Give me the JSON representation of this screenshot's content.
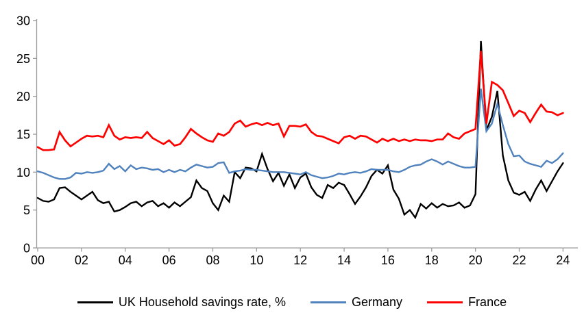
{
  "chart_data": {
    "type": "line",
    "title": "",
    "xlabel": "",
    "ylabel": "",
    "x_unit": "quarterly",
    "x_start": 2000.0,
    "x_step": 0.25,
    "xlim": [
      2000,
      2024.3
    ],
    "ylim": [
      0,
      30
    ],
    "grid": false,
    "legend_position": "bottom",
    "ytick_values": [
      0,
      5,
      10,
      15,
      20,
      25,
      30
    ],
    "xtick_years": [
      2000,
      2002,
      2004,
      2006,
      2008,
      2010,
      2012,
      2014,
      2016,
      2018,
      2020,
      2022,
      2024
    ],
    "xtick_labels": [
      "00",
      "02",
      "04",
      "06",
      "08",
      "10",
      "12",
      "14",
      "16",
      "18",
      "20",
      "22",
      "24"
    ],
    "series": [
      {
        "name": "UK Household savings rate, %",
        "color": "#000000",
        "values": [
          6.6,
          6.2,
          6.1,
          6.4,
          7.9,
          8.0,
          7.4,
          6.9,
          6.4,
          6.9,
          7.4,
          6.3,
          5.9,
          6.1,
          4.8,
          5.0,
          5.4,
          5.9,
          6.1,
          5.5,
          6.0,
          6.2,
          5.5,
          5.9,
          5.3,
          6.0,
          5.5,
          6.1,
          6.7,
          8.9,
          7.9,
          7.5,
          5.9,
          5.0,
          6.9,
          6.1,
          10.0,
          9.2,
          10.6,
          10.5,
          10.1,
          12.4,
          10.4,
          8.8,
          9.9,
          8.2,
          9.7,
          7.9,
          9.3,
          9.8,
          8.0,
          7.0,
          6.6,
          8.3,
          7.9,
          8.6,
          8.3,
          7.1,
          5.8,
          6.8,
          8.0,
          9.5,
          10.3,
          9.8,
          10.9,
          7.7,
          6.5,
          4.4,
          5.0,
          4.0,
          5.8,
          5.2,
          5.9,
          5.3,
          5.8,
          5.5,
          5.6,
          6.0,
          5.3,
          5.6,
          7.1,
          27.3,
          15.5,
          17.3,
          20.7,
          12.2,
          8.9,
          7.3,
          7.0,
          7.4,
          6.2,
          7.7,
          8.9,
          7.5,
          8.8,
          10.1,
          11.2
        ]
      },
      {
        "name": "Germany",
        "color": "#4F81BD",
        "values": [
          10.1,
          9.9,
          9.6,
          9.3,
          9.1,
          9.1,
          9.3,
          9.9,
          9.8,
          10.0,
          9.9,
          10.0,
          10.2,
          11.1,
          10.4,
          10.8,
          10.1,
          10.9,
          10.4,
          10.6,
          10.5,
          10.3,
          10.4,
          10.0,
          10.3,
          10.0,
          10.3,
          10.1,
          10.6,
          11.0,
          10.8,
          10.6,
          10.7,
          11.2,
          11.3,
          9.9,
          10.1,
          10.2,
          10.4,
          10.3,
          10.3,
          10.2,
          10.1,
          10.0,
          10.0,
          10.0,
          9.9,
          9.8,
          9.7,
          10.0,
          9.6,
          9.4,
          9.2,
          9.3,
          9.5,
          9.8,
          9.7,
          9.9,
          10.0,
          9.9,
          10.1,
          10.4,
          10.3,
          10.3,
          10.3,
          10.1,
          10.0,
          10.3,
          10.7,
          10.9,
          11.0,
          11.4,
          11.7,
          11.4,
          11.0,
          11.4,
          11.1,
          10.8,
          10.6,
          10.6,
          10.7,
          21.0,
          15.4,
          16.4,
          19.0,
          16.2,
          13.7,
          12.1,
          12.2,
          11.4,
          11.1,
          10.9,
          10.7,
          11.5,
          11.2,
          11.7,
          12.5
        ]
      },
      {
        "name": "France",
        "color": "#FF0000",
        "values": [
          13.3,
          12.9,
          12.9,
          13.0,
          15.3,
          14.2,
          13.4,
          13.9,
          14.4,
          14.8,
          14.7,
          14.8,
          14.6,
          16.2,
          14.8,
          14.3,
          14.6,
          14.5,
          14.6,
          14.5,
          15.3,
          14.5,
          14.1,
          13.7,
          14.2,
          13.5,
          13.7,
          14.6,
          15.7,
          15.1,
          14.6,
          14.2,
          14.0,
          15.1,
          14.8,
          15.3,
          16.4,
          16.8,
          16.0,
          16.3,
          16.5,
          16.2,
          16.5,
          16.2,
          16.4,
          14.7,
          16.1,
          16.1,
          16.0,
          16.3,
          15.3,
          14.8,
          14.7,
          14.4,
          14.1,
          13.8,
          14.6,
          14.8,
          14.4,
          14.8,
          14.7,
          14.3,
          13.9,
          14.4,
          14.1,
          14.4,
          14.1,
          14.3,
          14.1,
          14.3,
          14.2,
          14.2,
          14.1,
          14.3,
          14.3,
          15.1,
          14.6,
          14.4,
          15.1,
          15.4,
          15.7,
          26.0,
          16.4,
          21.9,
          21.5,
          20.8,
          19.1,
          17.4,
          18.1,
          17.8,
          16.6,
          17.8,
          18.9,
          18.0,
          17.9,
          17.5,
          17.8
        ]
      }
    ]
  },
  "colors": {
    "background": "#FFFFFF",
    "axis": "#9B9B9B",
    "tick_text": "#000000"
  }
}
